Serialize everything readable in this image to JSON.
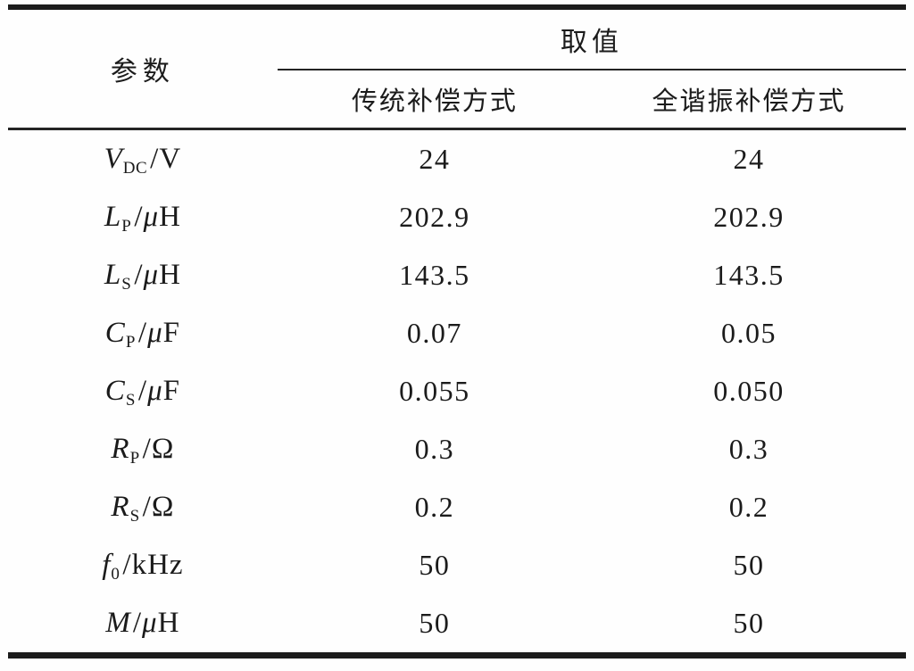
{
  "page": {
    "background": "#fefefe",
    "text_color": "#1b1b1b",
    "rule_color": "#1c1c1c"
  },
  "table": {
    "header": {
      "param": "参数",
      "value_group": "取值",
      "columns": [
        "传统补偿方式",
        "全谐振补偿方式"
      ]
    },
    "rows": [
      {
        "symbol": "V",
        "subscript": "DC",
        "unit": "V",
        "values": [
          "24",
          "24"
        ]
      },
      {
        "symbol": "L",
        "subscript": "P",
        "unit": "μH",
        "values": [
          "202.9",
          "202.9"
        ]
      },
      {
        "symbol": "L",
        "subscript": "S",
        "unit": "μH",
        "values": [
          "143.5",
          "143.5"
        ]
      },
      {
        "symbol": "C",
        "subscript": "P",
        "unit": "μF",
        "values": [
          "0.07",
          "0.05"
        ]
      },
      {
        "symbol": "C",
        "subscript": "S",
        "unit": "μF",
        "values": [
          "0.055",
          "0.050"
        ]
      },
      {
        "symbol": "R",
        "subscript": "P",
        "unit": "Ω",
        "values": [
          "0.3",
          "0.3"
        ]
      },
      {
        "symbol": "R",
        "subscript": "S",
        "unit": "Ω",
        "values": [
          "0.2",
          "0.2"
        ]
      },
      {
        "symbol": "f",
        "subscript": "0",
        "unit": "kHz",
        "values": [
          "50",
          "50"
        ]
      },
      {
        "symbol": "M",
        "subscript": "",
        "unit": "μH",
        "values": [
          "50",
          "50"
        ]
      }
    ]
  },
  "chart_data": {
    "type": "table",
    "columns": [
      "参数",
      "传统补偿方式",
      "全谐振补偿方式"
    ],
    "rows": [
      [
        "V_DC/V",
        "24",
        "24"
      ],
      [
        "L_P/μH",
        "202.9",
        "202.9"
      ],
      [
        "L_S/μH",
        "143.5",
        "143.5"
      ],
      [
        "C_P/μF",
        "0.07",
        "0.05"
      ],
      [
        "C_S/μF",
        "0.055",
        "0.050"
      ],
      [
        "R_P/Ω",
        "0.3",
        "0.3"
      ],
      [
        "R_S/Ω",
        "0.2",
        "0.2"
      ],
      [
        "f_0/kHz",
        "50",
        "50"
      ],
      [
        "M/μH",
        "50",
        "50"
      ]
    ]
  }
}
